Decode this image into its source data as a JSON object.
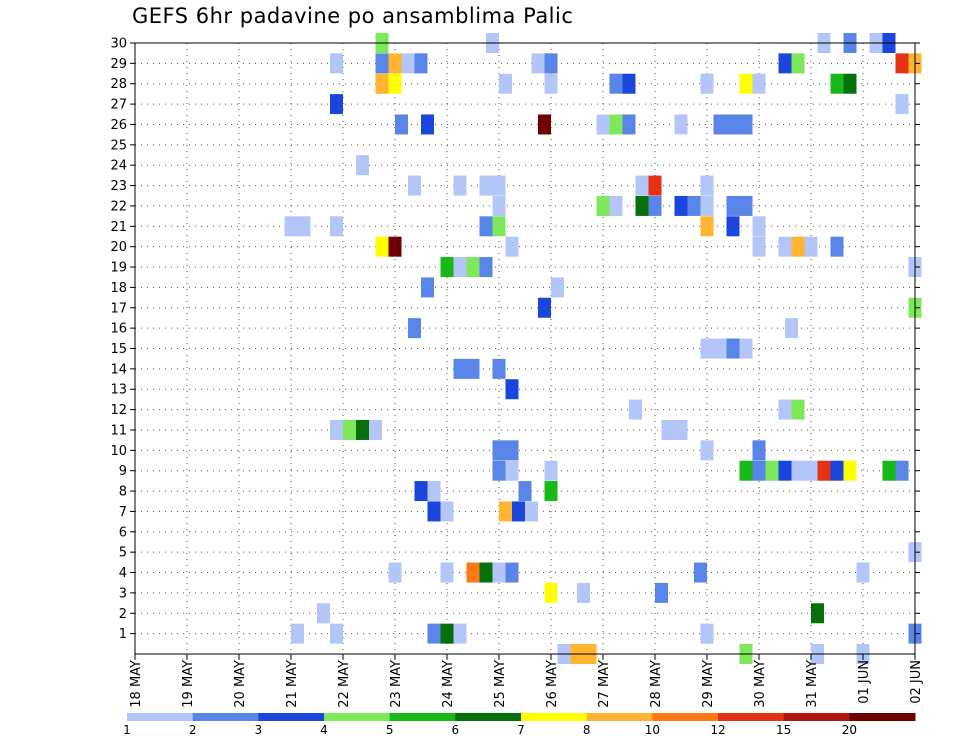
{
  "chart_data": {
    "type": "heatmap",
    "title": "GEFS 6hr padavine po ansamblima Palic",
    "xlabel": "",
    "ylabel": "",
    "x_ticks": [
      "18 MAY",
      "19 MAY",
      "20 MAY",
      "21 MAY",
      "22 MAY",
      "23 MAY",
      "24 MAY",
      "25 MAY",
      "26 MAY",
      "27 MAY",
      "28 MAY",
      "29 MAY",
      "30 MAY",
      "31 MAY",
      "01 JUN",
      "02 JUN"
    ],
    "y_ticks": [
      "1",
      "2",
      "3",
      "4",
      "5",
      "6",
      "7",
      "8",
      "9",
      "10",
      "11",
      "12",
      "13",
      "14",
      "15",
      "16",
      "17",
      "18",
      "19",
      "20",
      "21",
      "22",
      "23",
      "24",
      "25",
      "26",
      "27",
      "28",
      "29",
      "30"
    ],
    "xlim_steps": [
      0,
      60
    ],
    "ylim": [
      0,
      30
    ],
    "grid": true,
    "colorbar": {
      "position": "bottom",
      "labels": [
        "1",
        "2",
        "3",
        "4",
        "5",
        "6",
        "7",
        "8",
        "10",
        "12",
        "15",
        "20"
      ],
      "colors": [
        "#b4c6f8",
        "#5a85e8",
        "#1a46dc",
        "#7ce85a",
        "#18b818",
        "#07700a",
        "#ffff00",
        "#ffb432",
        "#ff7814",
        "#e63214",
        "#b41414",
        "#6e0000"
      ]
    },
    "cells": [
      {
        "y": 30,
        "x": 19,
        "c": 3
      },
      {
        "y": 30,
        "x": 27.5,
        "c": 0
      },
      {
        "y": 30,
        "x": 53,
        "c": 0
      },
      {
        "y": 30,
        "x": 55,
        "c": 1
      },
      {
        "y": 30,
        "x": 57,
        "c": 0
      },
      {
        "y": 30,
        "x": 58,
        "c": 2
      },
      {
        "y": 29,
        "x": 15.5,
        "c": 0
      },
      {
        "y": 29,
        "x": 19,
        "c": 1
      },
      {
        "y": 29,
        "x": 20,
        "c": 7
      },
      {
        "y": 29,
        "x": 21,
        "c": 0
      },
      {
        "y": 29,
        "x": 22,
        "c": 1
      },
      {
        "y": 29,
        "x": 31,
        "c": 0
      },
      {
        "y": 29,
        "x": 32,
        "c": 1
      },
      {
        "y": 29,
        "x": 50,
        "c": 2
      },
      {
        "y": 29,
        "x": 51,
        "c": 3
      },
      {
        "y": 29,
        "x": 59,
        "c": 9
      },
      {
        "y": 29,
        "x": 60,
        "c": 7
      },
      {
        "y": 28,
        "x": 19,
        "c": 7
      },
      {
        "y": 28,
        "x": 20,
        "c": 6
      },
      {
        "y": 28,
        "x": 28.5,
        "c": 0
      },
      {
        "y": 28,
        "x": 32,
        "c": 0
      },
      {
        "y": 28,
        "x": 37,
        "c": 1
      },
      {
        "y": 28,
        "x": 38,
        "c": 2
      },
      {
        "y": 28,
        "x": 44,
        "c": 0
      },
      {
        "y": 28,
        "x": 47,
        "c": 6
      },
      {
        "y": 28,
        "x": 48,
        "c": 0
      },
      {
        "y": 28,
        "x": 54,
        "c": 4
      },
      {
        "y": 28,
        "x": 55,
        "c": 5
      },
      {
        "y": 27,
        "x": 15.5,
        "c": 2
      },
      {
        "y": 27,
        "x": 59,
        "c": 0
      },
      {
        "y": 26,
        "x": 20.5,
        "c": 1
      },
      {
        "y": 26,
        "x": 22.5,
        "c": 2
      },
      {
        "y": 26,
        "x": 31.5,
        "c": 11
      },
      {
        "y": 26,
        "x": 36,
        "c": 0
      },
      {
        "y": 26,
        "x": 37,
        "c": 3
      },
      {
        "y": 26,
        "x": 38,
        "c": 1
      },
      {
        "y": 26,
        "x": 42,
        "c": 0
      },
      {
        "y": 26,
        "x": 45,
        "c": 1
      },
      {
        "y": 26,
        "x": 46,
        "c": 1
      },
      {
        "y": 26,
        "x": 47,
        "c": 1
      },
      {
        "y": 24,
        "x": 17.5,
        "c": 0
      },
      {
        "y": 23,
        "x": 21.5,
        "c": 0
      },
      {
        "y": 23,
        "x": 25,
        "c": 0
      },
      {
        "y": 23,
        "x": 27,
        "c": 0
      },
      {
        "y": 23,
        "x": 28,
        "c": 0
      },
      {
        "y": 23,
        "x": 39,
        "c": 0
      },
      {
        "y": 23,
        "x": 40,
        "c": 9
      },
      {
        "y": 23,
        "x": 44,
        "c": 0
      },
      {
        "y": 22,
        "x": 28,
        "c": 0
      },
      {
        "y": 22,
        "x": 36,
        "c": 3
      },
      {
        "y": 22,
        "x": 37,
        "c": 0
      },
      {
        "y": 22,
        "x": 39,
        "c": 5
      },
      {
        "y": 22,
        "x": 40,
        "c": 1
      },
      {
        "y": 22,
        "x": 42,
        "c": 2
      },
      {
        "y": 22,
        "x": 43,
        "c": 1
      },
      {
        "y": 22,
        "x": 44,
        "c": 0
      },
      {
        "y": 22,
        "x": 46,
        "c": 1
      },
      {
        "y": 22,
        "x": 47,
        "c": 1
      },
      {
        "y": 21,
        "x": 12,
        "c": 0
      },
      {
        "y": 21,
        "x": 13,
        "c": 0
      },
      {
        "y": 21,
        "x": 15.5,
        "c": 0
      },
      {
        "y": 21,
        "x": 27,
        "c": 1
      },
      {
        "y": 21,
        "x": 28,
        "c": 3
      },
      {
        "y": 21,
        "x": 44,
        "c": 7
      },
      {
        "y": 21,
        "x": 46,
        "c": 2
      },
      {
        "y": 21,
        "x": 48,
        "c": 0
      },
      {
        "y": 20,
        "x": 19,
        "c": 6
      },
      {
        "y": 20,
        "x": 20,
        "c": 11
      },
      {
        "y": 20,
        "x": 29,
        "c": 0
      },
      {
        "y": 20,
        "x": 48,
        "c": 0
      },
      {
        "y": 20,
        "x": 50,
        "c": 0
      },
      {
        "y": 20,
        "x": 51,
        "c": 7
      },
      {
        "y": 20,
        "x": 52,
        "c": 0
      },
      {
        "y": 20,
        "x": 54,
        "c": 1
      },
      {
        "y": 19,
        "x": 24,
        "c": 4
      },
      {
        "y": 19,
        "x": 25,
        "c": 0
      },
      {
        "y": 19,
        "x": 26,
        "c": 3
      },
      {
        "y": 19,
        "x": 27,
        "c": 1
      },
      {
        "y": 19,
        "x": 60,
        "c": 0
      },
      {
        "y": 18,
        "x": 22.5,
        "c": 1
      },
      {
        "y": 18,
        "x": 32.5,
        "c": 0
      },
      {
        "y": 17,
        "x": 31.5,
        "c": 2
      },
      {
        "y": 17,
        "x": 60,
        "c": 3
      },
      {
        "y": 16,
        "x": 21.5,
        "c": 1
      },
      {
        "y": 16,
        "x": 50.5,
        "c": 0
      },
      {
        "y": 15,
        "x": 44,
        "c": 0
      },
      {
        "y": 15,
        "x": 45,
        "c": 0
      },
      {
        "y": 15,
        "x": 46,
        "c": 1
      },
      {
        "y": 15,
        "x": 47,
        "c": 0
      },
      {
        "y": 14,
        "x": 25,
        "c": 1
      },
      {
        "y": 14,
        "x": 26,
        "c": 1
      },
      {
        "y": 14,
        "x": 28,
        "c": 1
      },
      {
        "y": 13,
        "x": 29,
        "c": 2
      },
      {
        "y": 12,
        "x": 38.5,
        "c": 0
      },
      {
        "y": 12,
        "x": 50,
        "c": 0
      },
      {
        "y": 12,
        "x": 51,
        "c": 3
      },
      {
        "y": 11,
        "x": 15.5,
        "c": 0
      },
      {
        "y": 11,
        "x": 16.5,
        "c": 3
      },
      {
        "y": 11,
        "x": 17.5,
        "c": 5
      },
      {
        "y": 11,
        "x": 18.5,
        "c": 0
      },
      {
        "y": 11,
        "x": 41,
        "c": 0
      },
      {
        "y": 11,
        "x": 42,
        "c": 0
      },
      {
        "y": 10,
        "x": 28,
        "c": 1
      },
      {
        "y": 10,
        "x": 29,
        "c": 1
      },
      {
        "y": 10,
        "x": 44,
        "c": 0
      },
      {
        "y": 10,
        "x": 48,
        "c": 1
      },
      {
        "y": 9,
        "x": 28,
        "c": 1
      },
      {
        "y": 9,
        "x": 29,
        "c": 0
      },
      {
        "y": 9,
        "x": 32,
        "c": 0
      },
      {
        "y": 9,
        "x": 47,
        "c": 4
      },
      {
        "y": 9,
        "x": 48,
        "c": 1
      },
      {
        "y": 9,
        "x": 49,
        "c": 3
      },
      {
        "y": 9,
        "x": 50,
        "c": 2
      },
      {
        "y": 9,
        "x": 51,
        "c": 0
      },
      {
        "y": 9,
        "x": 52,
        "c": 0
      },
      {
        "y": 9,
        "x": 53,
        "c": 9
      },
      {
        "y": 9,
        "x": 54,
        "c": 2
      },
      {
        "y": 9,
        "x": 55,
        "c": 6
      },
      {
        "y": 9,
        "x": 58,
        "c": 4
      },
      {
        "y": 9,
        "x": 59,
        "c": 1
      },
      {
        "y": 8,
        "x": 22,
        "c": 2
      },
      {
        "y": 8,
        "x": 23,
        "c": 0
      },
      {
        "y": 8,
        "x": 30,
        "c": 1
      },
      {
        "y": 8,
        "x": 32,
        "c": 4
      },
      {
        "y": 7,
        "x": 23,
        "c": 2
      },
      {
        "y": 7,
        "x": 24,
        "c": 0
      },
      {
        "y": 7,
        "x": 28.5,
        "c": 7
      },
      {
        "y": 7,
        "x": 29.5,
        "c": 2
      },
      {
        "y": 7,
        "x": 30.5,
        "c": 0
      },
      {
        "y": 5,
        "x": 60,
        "c": 0
      },
      {
        "y": 4,
        "x": 20,
        "c": 0
      },
      {
        "y": 4,
        "x": 24,
        "c": 0
      },
      {
        "y": 4,
        "x": 26,
        "c": 8
      },
      {
        "y": 4,
        "x": 27,
        "c": 5
      },
      {
        "y": 4,
        "x": 28,
        "c": 0
      },
      {
        "y": 4,
        "x": 29,
        "c": 1
      },
      {
        "y": 4,
        "x": 43.5,
        "c": 1
      },
      {
        "y": 4,
        "x": 56,
        "c": 0
      },
      {
        "y": 3,
        "x": 32,
        "c": 6
      },
      {
        "y": 3,
        "x": 34.5,
        "c": 0
      },
      {
        "y": 3,
        "x": 40.5,
        "c": 1
      },
      {
        "y": 2,
        "x": 14.5,
        "c": 0
      },
      {
        "y": 2,
        "x": 52.5,
        "c": 5
      },
      {
        "y": 1,
        "x": 12.5,
        "c": 0
      },
      {
        "y": 1,
        "x": 15.5,
        "c": 0
      },
      {
        "y": 1,
        "x": 23,
        "c": 1
      },
      {
        "y": 1,
        "x": 24,
        "c": 5
      },
      {
        "y": 1,
        "x": 25,
        "c": 0
      },
      {
        "y": 1,
        "x": 44,
        "c": 0
      },
      {
        "y": 1,
        "x": 60,
        "c": 1
      },
      {
        "y": 0,
        "x": 33,
        "c": 0
      },
      {
        "y": 0,
        "x": 34,
        "c": 7
      },
      {
        "y": 0,
        "x": 35,
        "c": 7
      },
      {
        "y": 0,
        "x": 47,
        "c": 3
      },
      {
        "y": 0,
        "x": 52.5,
        "c": 0
      },
      {
        "y": 0,
        "x": 56,
        "c": 0
      }
    ]
  }
}
